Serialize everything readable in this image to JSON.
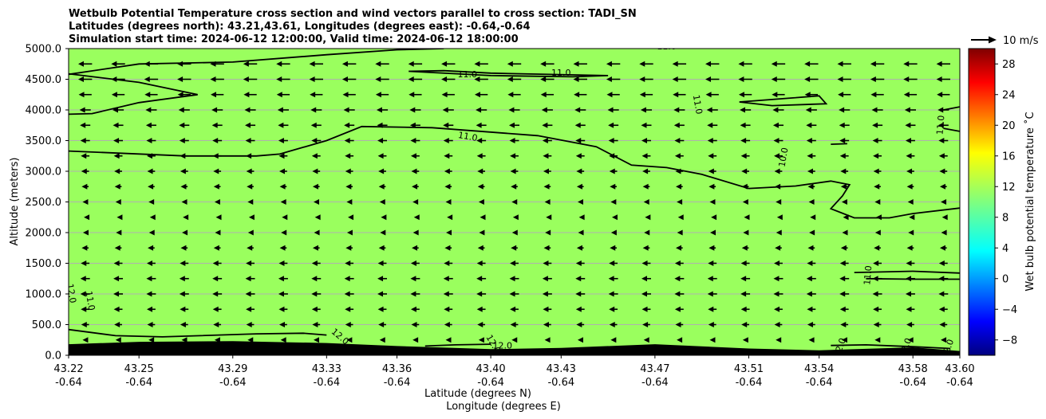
{
  "chart_data": {
    "type": "heatmap",
    "title": [
      "Wetbulb Potential Temperature cross section and wind vectors parallel to cross section: TADI_SN",
      "Latitudes (degrees north): 43.21,43.61, Longitudes (degrees east): -0.64,-0.64",
      "Simulation start time: 2024-06-12 12:00:00, Valid time: 2024-06-12 18:00:00"
    ],
    "xlabel": "Latitude (degrees N)",
    "xlabel2": "Longitude (degrees E)",
    "ylabel": "Altitude (meters)",
    "x_ticks": [
      {
        "lat": "43.22",
        "lon": "-0.64"
      },
      {
        "lat": "43.25",
        "lon": "-0.64"
      },
      {
        "lat": "43.29",
        "lon": "-0.64"
      },
      {
        "lat": "43.33",
        "lon": "-0.64"
      },
      {
        "lat": "43.36",
        "lon": "-0.64"
      },
      {
        "lat": "43.40",
        "lon": "-0.64"
      },
      {
        "lat": "43.43",
        "lon": "-0.64"
      },
      {
        "lat": "43.47",
        "lon": "-0.64"
      },
      {
        "lat": "43.51",
        "lon": "-0.64"
      },
      {
        "lat": "43.54",
        "lon": "-0.64"
      },
      {
        "lat": "43.58",
        "lon": "-0.64"
      },
      {
        "lat": "43.60",
        "lon": "-0.64"
      }
    ],
    "xlim": [
      43.22,
      43.6
    ],
    "y_ticks": [
      "0.0",
      "500.0",
      "1000.0",
      "1500.0",
      "2000.0",
      "2500.0",
      "3000.0",
      "3500.0",
      "4000.0",
      "4500.0",
      "5000.0"
    ],
    "ylim": [
      0,
      5000
    ],
    "grid": "horizontal",
    "colorbar": {
      "label": "Wet bulb potential temperature ˚C",
      "ticks": [
        "−8",
        "−4",
        "0",
        "4",
        "8",
        "12",
        "16",
        "20",
        "24",
        "28"
      ],
      "range": [
        -10,
        30
      ],
      "colormap": "jet"
    },
    "vector_key": {
      "label": "10 m/s",
      "speed": 10
    },
    "field_value": 12,
    "field_color": "#9aff5e",
    "contour_labels": [
      "11.0",
      "11.0",
      "11.0",
      "11.0",
      "11.0",
      "10.0",
      "11.0",
      "11.0",
      "11.0",
      "12.0",
      "12.0",
      "12.0",
      "12.0",
      "12.0",
      "12.0",
      "12.0"
    ],
    "terrain": [
      {
        "lat": 43.22,
        "alt": 180
      },
      {
        "lat": 43.25,
        "alt": 220
      },
      {
        "lat": 43.29,
        "alt": 230
      },
      {
        "lat": 43.33,
        "alt": 200
      },
      {
        "lat": 43.36,
        "alt": 150
      },
      {
        "lat": 43.4,
        "alt": 100
      },
      {
        "lat": 43.43,
        "alt": 120
      },
      {
        "lat": 43.47,
        "alt": 180
      },
      {
        "lat": 43.51,
        "alt": 110
      },
      {
        "lat": 43.54,
        "alt": 80
      },
      {
        "lat": 43.58,
        "alt": 130
      },
      {
        "lat": 43.6,
        "alt": 70
      }
    ],
    "wind_rows": [
      {
        "alt": 4750,
        "u": -8.0
      },
      {
        "alt": 4500,
        "u": -8.0
      },
      {
        "alt": 4250,
        "u": -7.5
      },
      {
        "alt": 4000,
        "u": -6.5
      },
      {
        "alt": 3750,
        "u": -6.0
      },
      {
        "alt": 3500,
        "u": -5.5
      },
      {
        "alt": 3250,
        "u": -5.0
      },
      {
        "alt": 3000,
        "u": -4.5
      },
      {
        "alt": 2750,
        "u": -4.0
      },
      {
        "alt": 2500,
        "u": -3.0
      },
      {
        "alt": 2250,
        "u": -1.5
      },
      {
        "alt": 2000,
        "u": -2.5
      },
      {
        "alt": 1750,
        "u": -4.0
      },
      {
        "alt": 1500,
        "u": -5.0
      },
      {
        "alt": 1250,
        "u": -5.5
      },
      {
        "alt": 1000,
        "u": -5.5
      },
      {
        "alt": 750,
        "u": -5.0
      },
      {
        "alt": 500,
        "u": -4.5
      },
      {
        "alt": 250,
        "u": -3.0
      }
    ],
    "contours": [
      {
        "value": "11.0",
        "points": [
          [
            43.22,
            4580
          ],
          [
            43.25,
            4750
          ],
          [
            43.29,
            4780
          ],
          [
            43.33,
            4900
          ],
          [
            43.36,
            4980
          ],
          [
            43.38,
            5000
          ]
        ]
      },
      {
        "value": "11.0",
        "points": [
          [
            43.22,
            4590
          ],
          [
            43.25,
            4450
          ],
          [
            43.275,
            4250
          ],
          [
            43.25,
            4120
          ],
          [
            43.23,
            3940
          ],
          [
            43.22,
            3930
          ]
        ]
      },
      {
        "value": "11.0",
        "points": [
          [
            43.365,
            4630
          ],
          [
            43.4,
            4560
          ],
          [
            43.435,
            4540
          ],
          [
            43.45,
            4560
          ],
          [
            43.4,
            4600
          ],
          [
            43.38,
            4640
          ],
          [
            43.365,
            4630
          ]
        ]
      },
      {
        "value": "11.0",
        "points": [
          [
            43.22,
            3330
          ],
          [
            43.27,
            3250
          ],
          [
            43.3,
            3250
          ],
          [
            43.31,
            3280
          ],
          [
            43.33,
            3500
          ],
          [
            43.345,
            3730
          ],
          [
            43.375,
            3710
          ],
          [
            43.42,
            3580
          ],
          [
            43.445,
            3400
          ],
          [
            43.46,
            3100
          ],
          [
            43.475,
            3060
          ],
          [
            43.49,
            2950
          ],
          [
            43.51,
            2720
          ],
          [
            43.53,
            2760
          ],
          [
            43.545,
            2840
          ],
          [
            43.553,
            2780
          ],
          [
            43.55,
            2600
          ],
          [
            43.545,
            2390
          ],
          [
            43.555,
            2240
          ],
          [
            43.57,
            2240
          ],
          [
            43.58,
            2310
          ],
          [
            43.6,
            2400
          ]
        ]
      },
      {
        "value": "10.0",
        "points": [
          [
            43.53,
            4200
          ],
          [
            43.54,
            4230
          ],
          [
            43.543,
            4100
          ],
          [
            43.52,
            4070
          ],
          [
            43.506,
            4130
          ],
          [
            43.53,
            4200
          ]
        ]
      },
      {
        "value": "10.0",
        "points": [
          [
            43.545,
            3440
          ],
          [
            43.552,
            3450
          ]
        ]
      },
      {
        "value": "11.0",
        "points": [
          [
            43.593,
            3700
          ],
          [
            43.6,
            3650
          ]
        ]
      },
      {
        "value": "11.0",
        "points": [
          [
            43.593,
            4000
          ],
          [
            43.6,
            4050
          ]
        ]
      },
      {
        "value": "11.0",
        "points": [
          [
            43.555,
            1350
          ],
          [
            43.58,
            1370
          ],
          [
            43.6,
            1340
          ]
        ]
      },
      {
        "value": "11.0",
        "points": [
          [
            43.56,
            1250
          ],
          [
            43.58,
            1240
          ],
          [
            43.6,
            1240
          ]
        ]
      },
      {
        "value": "12.0",
        "points": [
          [
            43.22,
            420
          ],
          [
            43.24,
            320
          ],
          [
            43.26,
            300
          ],
          [
            43.3,
            350
          ],
          [
            43.32,
            360
          ],
          [
            43.33,
            330
          ]
        ]
      },
      {
        "value": "12.0",
        "points": [
          [
            43.372,
            150
          ],
          [
            43.385,
            170
          ],
          [
            43.4,
            180
          ]
        ]
      },
      {
        "value": "12.0",
        "points": [
          [
            43.545,
            160
          ],
          [
            43.56,
            170
          ],
          [
            43.58,
            140
          ],
          [
            43.596,
            110
          ]
        ]
      }
    ]
  }
}
